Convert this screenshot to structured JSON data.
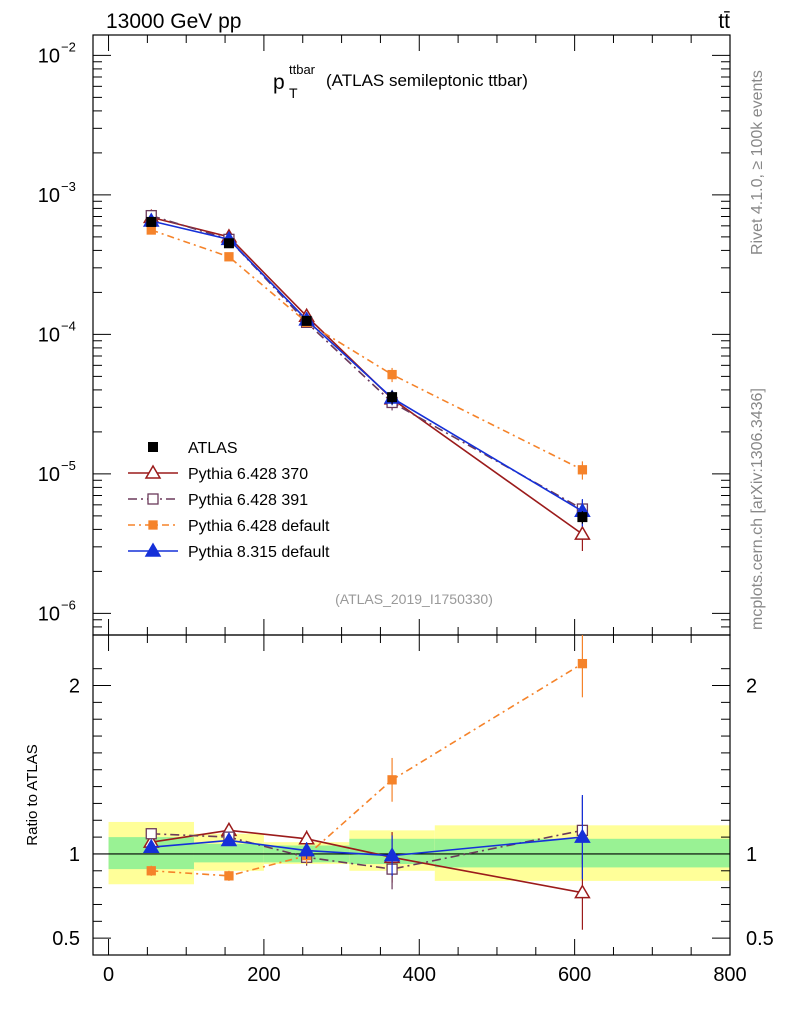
{
  "header": {
    "left": "13000 GeV pp",
    "right": "tt̄"
  },
  "side_labels": {
    "top": "Rivet 4.1.0, ≥ 100k events",
    "bottom": "mcplots.cern.ch [arXiv:1306.3436]"
  },
  "plot_title": {
    "base": "p",
    "sup": "ttbar",
    "sub": "T",
    "rest": "(ATLAS semileptonic ttbar)"
  },
  "annotation": "(ATLAS_2019_I1750330)",
  "ratio_ylabel": "Ratio to ATLAS",
  "chart_data": {
    "type": "line",
    "x_range": [
      -20,
      800
    ],
    "x_ticks": [
      0,
      200,
      400,
      600,
      800
    ],
    "x_tick_labels": [
      "0",
      "200",
      "400",
      "600",
      "800"
    ],
    "main": {
      "yscale": "log",
      "ylim": [
        7e-07,
        0.014
      ],
      "y_tick_labels": [
        {
          "mant": "10",
          "exp": "−2",
          "value": 0.01
        },
        {
          "mant": "10",
          "exp": "−3",
          "value": 0.001
        },
        {
          "mant": "10",
          "exp": "−4",
          "value": 0.0001
        },
        {
          "mant": "10",
          "exp": "−5",
          "value": 1e-05
        },
        {
          "mant": "10",
          "exp": "−6",
          "value": 1e-06
        }
      ]
    },
    "ratio": {
      "ylim": [
        0.4,
        2.3
      ],
      "y_ticks": [
        0.5,
        1,
        2
      ],
      "y_tick_labels": [
        "0.5",
        "1",
        "2"
      ],
      "bands": [
        {
          "x0": 0,
          "x1": 110,
          "inner": [
            0.91,
            1.1
          ],
          "outer": [
            0.82,
            1.19
          ]
        },
        {
          "x0": 110,
          "x1": 200,
          "inner": [
            0.95,
            1.06
          ],
          "outer": [
            0.9,
            1.12
          ]
        },
        {
          "x0": 200,
          "x1": 310,
          "inner": [
            0.95,
            1.05
          ],
          "outer": [
            0.94,
            1.07
          ]
        },
        {
          "x0": 310,
          "x1": 420,
          "inner": [
            0.94,
            1.09
          ],
          "outer": [
            0.9,
            1.14
          ]
        },
        {
          "x0": 420,
          "x1": 800,
          "inner": [
            0.92,
            1.09
          ],
          "outer": [
            0.84,
            1.17
          ]
        }
      ]
    },
    "x": [
      55,
      155,
      255,
      365,
      610
    ],
    "data": {
      "name": "ATLAS",
      "color": "#000000",
      "y": [
        0.00064,
        0.00045,
        0.000125,
        3.55e-05,
        4.9e-06
      ],
      "err": [
        3e-05,
        2e-05,
        6e-06,
        4e-06,
        5e-07
      ]
    },
    "series": [
      {
        "name": "Pythia 6.428 370",
        "color": "#9b1b1b",
        "marker": "triangle-open",
        "dash": "",
        "y": [
          0.00069,
          0.0005,
          0.000135,
          3.45e-05,
          3.7e-06
        ],
        "err": [
          2e-05,
          1.5e-05,
          6e-06,
          4e-06,
          9e-07
        ],
        "ratio": [
          1.07,
          1.14,
          1.09,
          0.98,
          0.77
        ],
        "ratio_err": [
          0.02,
          0.03,
          0.05,
          0.15,
          0.22
        ]
      },
      {
        "name": "Pythia 6.428 391",
        "color": "#6b3a5b",
        "marker": "square-open",
        "dash": "9,4,2,4",
        "y": [
          0.00071,
          0.00048,
          0.000122,
          3.25e-05,
          5.6e-06
        ],
        "err": [
          2e-05,
          1.5e-05,
          6e-06,
          4e-06,
          9e-07
        ],
        "ratio": [
          1.12,
          1.1,
          0.98,
          0.91,
          1.14
        ],
        "ratio_err": [
          0.02,
          0.03,
          0.05,
          0.12,
          0.2
        ]
      },
      {
        "name": "Pythia 6.428 default",
        "color": "#f5832a",
        "marker": "square-filled",
        "dash": "7,4,2,4",
        "y": [
          0.00056,
          0.00036,
          0.000122,
          5.15e-05,
          1.07e-05
        ],
        "err": [
          2e-05,
          1.2e-05,
          6e-06,
          6e-06,
          1.6e-06
        ],
        "ratio": [
          0.9,
          0.87,
          0.99,
          1.44,
          2.13
        ],
        "ratio_err": [
          0.03,
          0.03,
          0.05,
          0.13,
          0.2
        ]
      },
      {
        "name": "Pythia 8.315 default",
        "color": "#1530d8",
        "marker": "triangle-filled",
        "dash": "",
        "y": [
          0.00065,
          0.00048,
          0.000127,
          3.5e-05,
          5.4e-06
        ],
        "err": [
          2e-05,
          1.5e-05,
          6e-06,
          4e-06,
          1.2e-06
        ],
        "ratio": [
          1.04,
          1.08,
          1.02,
          0.99,
          1.1
        ],
        "ratio_err": [
          0.02,
          0.03,
          0.05,
          0.12,
          0.25
        ]
      }
    ]
  }
}
